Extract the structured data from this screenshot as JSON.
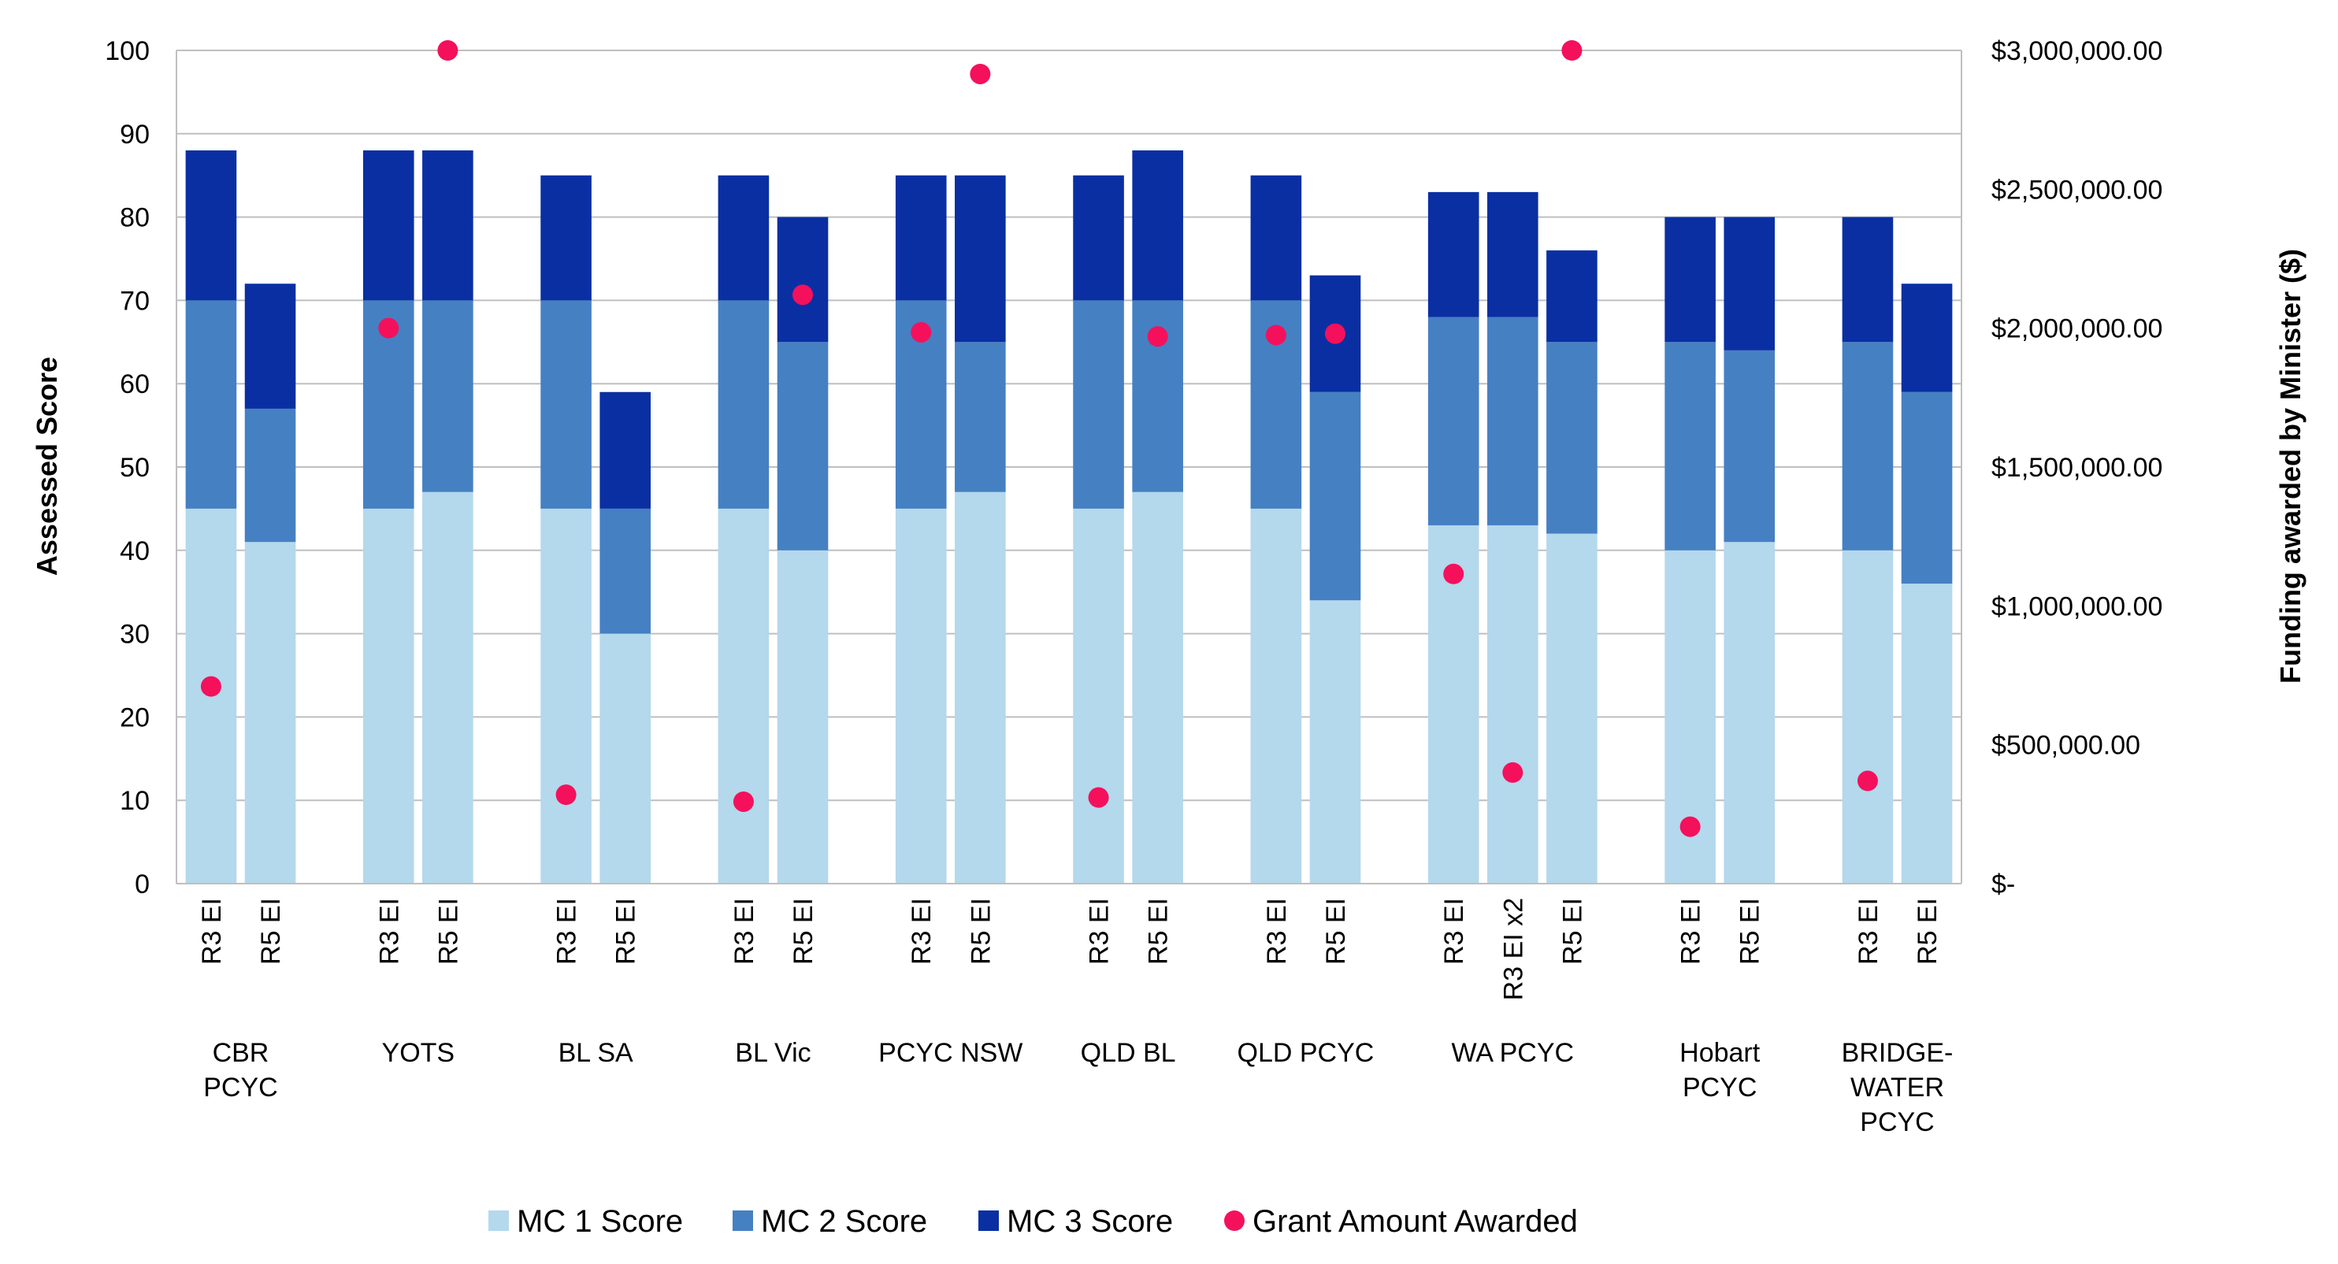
{
  "chart_data": {
    "type": "stacked-bar-with-scatter",
    "title": "",
    "ylabel": "Assessed Score",
    "y2label": "Funding awarded by Minister ($)",
    "ylim": [
      0,
      100
    ],
    "y_ticks": [
      0,
      10,
      20,
      30,
      40,
      50,
      60,
      70,
      80,
      90,
      100
    ],
    "y2lim": [
      0,
      3000000
    ],
    "y2_ticks": [
      {
        "value": 0,
        "label": "$-"
      },
      {
        "value": 500000,
        "label": "$500,000.00"
      },
      {
        "value": 1000000,
        "label": "$1,000,000.00"
      },
      {
        "value": 1500000,
        "label": "$1,500,000.00"
      },
      {
        "value": 2000000,
        "label": "$2,000,000.00"
      },
      {
        "value": 2500000,
        "label": "$2,500,000.00"
      },
      {
        "value": 3000000,
        "label": "$3,000,000.00"
      }
    ],
    "groups": [
      {
        "label": "CBR\nPCYC",
        "bars": [
          {
            "label": "R3 EI",
            "mc1": 45,
            "mc2": 25,
            "mc3": 18,
            "grant": 710000
          },
          {
            "label": "R5 EI",
            "mc1": 41,
            "mc2": 16,
            "mc3": 15,
            "grant": null
          }
        ]
      },
      {
        "label": "YOTS",
        "bars": [
          {
            "label": "R3 EI",
            "mc1": 45,
            "mc2": 25,
            "mc3": 18,
            "grant": 2000000
          },
          {
            "label": "R5 EI",
            "mc1": 47,
            "mc2": 23,
            "mc3": 18,
            "grant": 3000000
          }
        ]
      },
      {
        "label": "BL SA",
        "bars": [
          {
            "label": "R3 EI",
            "mc1": 45,
            "mc2": 25,
            "mc3": 15,
            "grant": 320000
          },
          {
            "label": "R5 EI",
            "mc1": 30,
            "mc2": 15,
            "mc3": 14,
            "grant": null
          }
        ]
      },
      {
        "label": "BL Vic",
        "bars": [
          {
            "label": "R3 EI",
            "mc1": 45,
            "mc2": 25,
            "mc3": 15,
            "grant": 295000
          },
          {
            "label": "R5 EI",
            "mc1": 40,
            "mc2": 25,
            "mc3": 15,
            "grant": 2120000
          }
        ]
      },
      {
        "label": "PCYC NSW",
        "bars": [
          {
            "label": "R3 EI",
            "mc1": 45,
            "mc2": 25,
            "mc3": 15,
            "grant": 1985000
          },
          {
            "label": "R5 EI",
            "mc1": 47,
            "mc2": 18,
            "mc3": 20,
            "grant": 2915000
          }
        ]
      },
      {
        "label": "QLD BL",
        "bars": [
          {
            "label": "R3 EI",
            "mc1": 45,
            "mc2": 25,
            "mc3": 15,
            "grant": 310000
          },
          {
            "label": "R5 EI",
            "mc1": 47,
            "mc2": 23,
            "mc3": 18,
            "grant": 1970000
          }
        ]
      },
      {
        "label": "QLD PCYC",
        "bars": [
          {
            "label": "R3 EI",
            "mc1": 45,
            "mc2": 25,
            "mc3": 15,
            "grant": 1975000
          },
          {
            "label": "R5 EI",
            "mc1": 34,
            "mc2": 25,
            "mc3": 14,
            "grant": 1980000
          }
        ]
      },
      {
        "label": "WA PCYC",
        "bars": [
          {
            "label": "R3 EI",
            "mc1": 43,
            "mc2": 25,
            "mc3": 15,
            "grant": 1115000
          },
          {
            "label": "R3 EI x2",
            "mc1": 43,
            "mc2": 25,
            "mc3": 15,
            "grant": 400000
          },
          {
            "label": "R5 EI",
            "mc1": 42,
            "mc2": 23,
            "mc3": 11,
            "grant": 3000000
          }
        ]
      },
      {
        "label": "Hobart\nPCYC",
        "bars": [
          {
            "label": "R3 EI",
            "mc1": 40,
            "mc2": 25,
            "mc3": 15,
            "grant": 205000
          },
          {
            "label": "R5 EI",
            "mc1": 41,
            "mc2": 23,
            "mc3": 16,
            "grant": null
          }
        ]
      },
      {
        "label": "BRIDGE-\nWATER\nPCYC",
        "bars": [
          {
            "label": "R3 EI",
            "mc1": 40,
            "mc2": 25,
            "mc3": 15,
            "grant": 370000
          },
          {
            "label": "R5 EI",
            "mc1": 36,
            "mc2": 23,
            "mc3": 13,
            "grant": null
          }
        ]
      }
    ],
    "series": [
      {
        "key": "mc1",
        "name": "MC 1 Score",
        "color": "#b4d8ec",
        "kind": "bar"
      },
      {
        "key": "mc2",
        "name": "MC 2 Score",
        "color": "#4580c3",
        "kind": "bar"
      },
      {
        "key": "mc3",
        "name": "MC 3 Score",
        "color": "#0a2fa3",
        "kind": "bar"
      },
      {
        "key": "grant",
        "name": "Grant Amount Awarded",
        "color": "#f5105c",
        "kind": "scatter"
      }
    ],
    "grid": true,
    "legend_position": "bottom"
  }
}
